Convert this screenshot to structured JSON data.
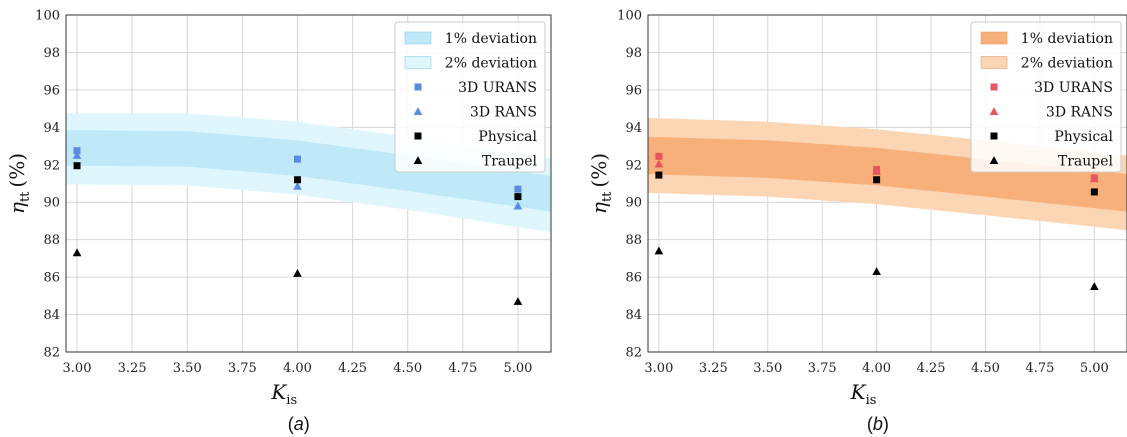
{
  "chart_data": [
    {
      "type": "scatter",
      "panel_label": "(a)",
      "xlabel_main": "K",
      "xlabel_sub": "is",
      "ylabel_main": "η",
      "ylabel_sub": "tt",
      "ylabel_unit": "(%)",
      "xlim": [
        2.95,
        5.15
      ],
      "ylim": [
        82,
        100
      ],
      "xticks": [
        "3.00",
        "3.25",
        "3.50",
        "3.75",
        "4.00",
        "4.25",
        "4.50",
        "4.75",
        "5.00"
      ],
      "yticks": [
        "82",
        "84",
        "86",
        "88",
        "90",
        "92",
        "94",
        "96",
        "98",
        "100"
      ],
      "grid": true,
      "legend_position": "top-right",
      "bands": [
        {
          "name": "1% deviation",
          "color": "#bfe8f8",
          "x": [
            2.95,
            3.5,
            4.0,
            4.5,
            5.15
          ],
          "upper": [
            93.85,
            93.8,
            93.3,
            92.5,
            91.4
          ],
          "lower": [
            91.95,
            91.9,
            91.4,
            90.6,
            89.5
          ]
        },
        {
          "name": "2% deviation",
          "color": "#dff6fc",
          "x": [
            2.95,
            3.5,
            4.0,
            4.5,
            5.15
          ],
          "upper": [
            94.75,
            94.75,
            94.3,
            93.5,
            92.35
          ],
          "lower": [
            90.95,
            90.9,
            90.4,
            89.6,
            88.4
          ]
        }
      ],
      "series": [
        {
          "name": "3D URANS",
          "marker": "square",
          "color": "#5a8be0",
          "x": [
            3.0,
            4.0,
            5.0
          ],
          "y": [
            92.75,
            92.3,
            90.7
          ]
        },
        {
          "name": "3D RANS",
          "marker": "triangle",
          "color": "#5a8be0",
          "x": [
            3.0,
            4.0,
            5.0
          ],
          "y": [
            92.5,
            90.85,
            89.8
          ]
        },
        {
          "name": "Physical",
          "marker": "square",
          "color": "#000000",
          "x": [
            3.0,
            4.0,
            5.0
          ],
          "y": [
            91.95,
            91.2,
            90.3
          ]
        },
        {
          "name": "Traupel",
          "marker": "triangle",
          "color": "#000000",
          "x": [
            3.0,
            4.0,
            5.0
          ],
          "y": [
            87.3,
            86.2,
            84.7
          ]
        }
      ]
    },
    {
      "type": "scatter",
      "panel_label": "(b)",
      "xlabel_main": "K",
      "xlabel_sub": "is",
      "ylabel_main": "η",
      "ylabel_sub": "tt",
      "ylabel_unit": "(%)",
      "xlim": [
        2.95,
        5.15
      ],
      "ylim": [
        82,
        100
      ],
      "xticks": [
        "3.00",
        "3.25",
        "3.50",
        "3.75",
        "4.00",
        "4.25",
        "4.50",
        "4.75",
        "5.00"
      ],
      "yticks": [
        "82",
        "84",
        "86",
        "88",
        "90",
        "92",
        "94",
        "96",
        "98",
        "100"
      ],
      "grid": true,
      "legend_position": "top-right",
      "bands": [
        {
          "name": "1% deviation",
          "color": "#f7b07a",
          "x": [
            2.95,
            3.5,
            4.0,
            4.5,
            5.15
          ],
          "upper": [
            93.5,
            93.3,
            92.9,
            92.3,
            91.5
          ],
          "lower": [
            91.5,
            91.3,
            90.9,
            90.3,
            89.5
          ]
        },
        {
          "name": "2% deviation",
          "color": "#fcd5b4",
          "x": [
            2.95,
            3.5,
            4.0,
            4.5,
            5.15
          ],
          "upper": [
            94.5,
            94.3,
            93.9,
            93.3,
            92.5
          ],
          "lower": [
            90.5,
            90.3,
            89.9,
            89.3,
            88.5
          ]
        }
      ],
      "series": [
        {
          "name": "3D URANS",
          "marker": "square",
          "color": "#e8555a",
          "x": [
            3.0,
            4.0,
            5.0
          ],
          "y": [
            92.45,
            91.75,
            91.3
          ]
        },
        {
          "name": "3D RANS",
          "marker": "triangle",
          "color": "#e8555a",
          "x": [
            3.0,
            4.0,
            5.0
          ],
          "y": [
            92.05,
            91.65,
            91.25
          ]
        },
        {
          "name": "Physical",
          "marker": "square",
          "color": "#000000",
          "x": [
            3.0,
            4.0,
            5.0
          ],
          "y": [
            91.45,
            91.2,
            90.55
          ]
        },
        {
          "name": "Traupel",
          "marker": "triangle",
          "color": "#000000",
          "x": [
            3.0,
            4.0,
            5.0
          ],
          "y": [
            87.4,
            86.3,
            85.5
          ]
        }
      ]
    }
  ]
}
